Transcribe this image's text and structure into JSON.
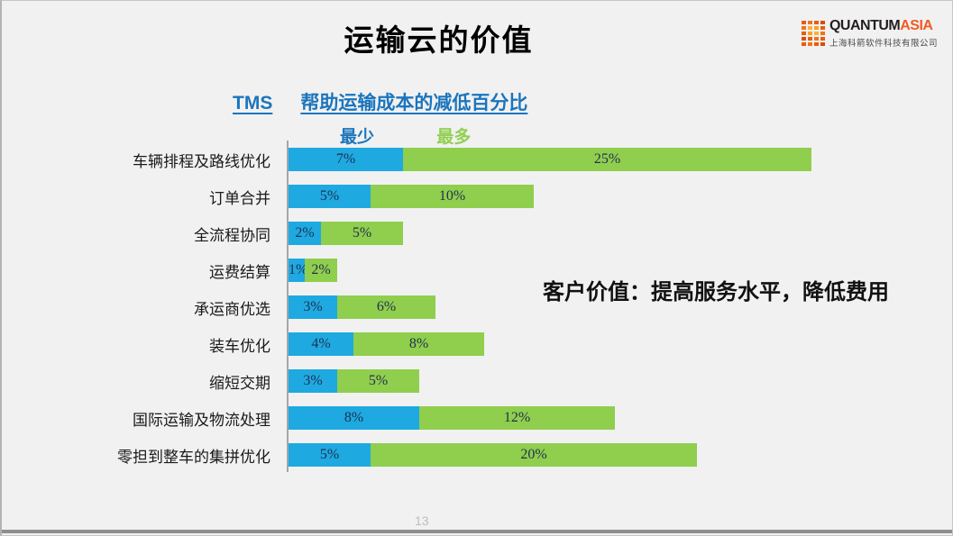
{
  "slide": {
    "title": "运输云的价值",
    "note": "客户价值：提高服务水平，降低费用",
    "page_number": "13"
  },
  "logo": {
    "brand_primary": "QUANTUM",
    "brand_secondary": "ASIA",
    "company": "上海科箭软件科技有限公司"
  },
  "chart_data": {
    "type": "bar",
    "orientation": "horizontal",
    "stacked": true,
    "title_prefix": "TMS",
    "title": "帮助运输成本的减低百分比",
    "legend_position": "top",
    "grid": false,
    "value_suffix": "%",
    "xlim": [
      0,
      32
    ],
    "categories": [
      "车辆排程及路线优化",
      "订单合并",
      "全流程协同",
      "运费结算",
      "承运商优选",
      "装车优化",
      "缩短交期",
      "国际运输及物流处理",
      "零担到整车的集拼优化"
    ],
    "series": [
      {
        "name": "最少",
        "color": "#1ea9e1",
        "values": [
          7,
          5,
          2,
          1,
          3,
          4,
          3,
          8,
          5
        ]
      },
      {
        "name": "最多",
        "color": "#90ce4d",
        "values": [
          25,
          10,
          5,
          2,
          6,
          8,
          5,
          12,
          20
        ]
      }
    ],
    "colors": {
      "heading_blue": "#1b75bc",
      "legend_min": "#1b75bc",
      "legend_max": "#92d050",
      "value_label": "#1f3050"
    }
  }
}
